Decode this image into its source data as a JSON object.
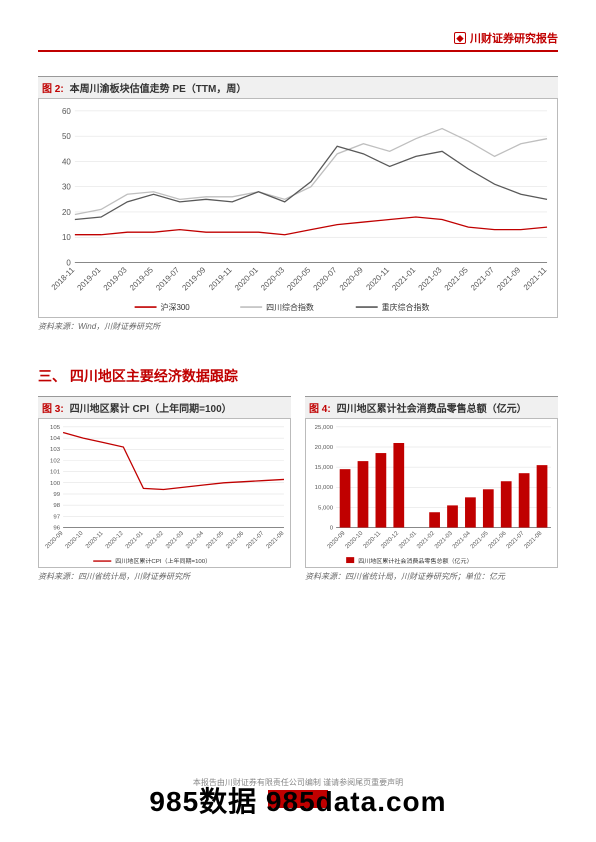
{
  "header": {
    "brand": "川财证券研究报告",
    "icon_name": "logo-icon"
  },
  "figure2": {
    "label": "图 2:",
    "title": "本周川渝板块估值走势 PE（TTM，周）",
    "type": "line",
    "ylim": [
      0,
      60
    ],
    "ytick_step": 10,
    "x_labels": [
      "2018-11",
      "2019-01",
      "2019-03",
      "2019-05",
      "2019-07",
      "2019-09",
      "2019-11",
      "2020-01",
      "2020-03",
      "2020-05",
      "2020-07",
      "2020-09",
      "2020-11",
      "2021-01",
      "2021-03",
      "2021-05",
      "2021-07",
      "2021-09",
      "2021-11"
    ],
    "series": [
      {
        "name": "沪深300",
        "color": "#c00000",
        "width": 1.3,
        "values": [
          11,
          11,
          12,
          12,
          13,
          12,
          12,
          12,
          11,
          13,
          15,
          16,
          17,
          18,
          17,
          14,
          13,
          13,
          14
        ]
      },
      {
        "name": "四川综合指数",
        "color": "#bfbfbf",
        "width": 1.3,
        "values": [
          19,
          21,
          27,
          28,
          25,
          26,
          26,
          28,
          25,
          30,
          43,
          47,
          44,
          49,
          53,
          48,
          42,
          47,
          49
        ]
      },
      {
        "name": "重庆综合指数",
        "color": "#595959",
        "width": 1.3,
        "values": [
          17,
          18,
          24,
          27,
          24,
          25,
          24,
          28,
          24,
          32,
          46,
          43,
          38,
          42,
          44,
          37,
          31,
          27,
          25
        ]
      }
    ],
    "background_color": "#ffffff",
    "grid_color": "#dddddd",
    "source": "资料来源：Wind，川财证券研究所"
  },
  "section3": {
    "heading": "三、  四川地区主要经济数据跟踪"
  },
  "figure3": {
    "label": "图 3:",
    "title": "四川地区累计 CPI（上年同期=100）",
    "type": "line",
    "ylim": [
      96,
      105
    ],
    "yticks": [
      96,
      97,
      98,
      99,
      100,
      101,
      102,
      103,
      104,
      105
    ],
    "x_labels": [
      "2020-09",
      "2020-10",
      "2020-11",
      "2020-12",
      "2021-01",
      "2021-02",
      "2021-03",
      "2021-04",
      "2021-05",
      "2021-06",
      "2021-07",
      "2021-08"
    ],
    "series": [
      {
        "name": "四川地区累计CPI（上年同期=100）",
        "color": "#c00000",
        "width": 1.3,
        "values": [
          104.5,
          104.0,
          103.6,
          103.2,
          99.5,
          99.4,
          99.6,
          99.8,
          100.0,
          100.1,
          100.2,
          100.3
        ]
      }
    ],
    "background_color": "#ffffff",
    "source": "资料来源：四川省统计局，川财证券研究所"
  },
  "figure4": {
    "label": "图 4:",
    "title": "四川地区累计社会消费品零售总额（亿元）",
    "type": "bar",
    "ylim": [
      0,
      25000
    ],
    "ytick_step": 5000,
    "x_labels": [
      "2020-09",
      "2020-10",
      "2020-11",
      "2020-12",
      "2021-01",
      "2021-02",
      "2021-03",
      "2021-04",
      "2021-05",
      "2021-06",
      "2021-07",
      "2021-08"
    ],
    "series": [
      {
        "name": "四川地区累计社会消费品零售总额（亿元）",
        "color": "#c00000",
        "values": [
          14500,
          16500,
          18500,
          21000,
          0,
          3800,
          5500,
          7500,
          9500,
          11500,
          13500,
          15500
        ]
      }
    ],
    "bar_width": 0.6,
    "background_color": "#ffffff",
    "source": "资料来源：四川省统计局，川财证券研究所；单位：亿元"
  },
  "footer": {
    "disclaimer": "本报告由川财证券有限责任公司编制  谨请参阅尾页重要声明",
    "watermark": "985数据  985data.com"
  }
}
